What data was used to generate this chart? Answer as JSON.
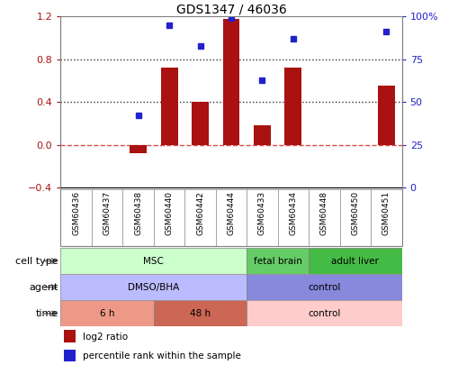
{
  "title": "GDS1347 / 46036",
  "samples": [
    "GSM60436",
    "GSM60437",
    "GSM60438",
    "GSM60440",
    "GSM60442",
    "GSM60444",
    "GSM60433",
    "GSM60434",
    "GSM60448",
    "GSM60450",
    "GSM60451"
  ],
  "log2_ratio": [
    0,
    0,
    -0.08,
    0.72,
    0.4,
    1.18,
    0.18,
    0.72,
    0,
    0,
    0.55
  ],
  "percentile_rank": [
    null,
    null,
    0.42,
    0.95,
    0.83,
    0.99,
    0.63,
    0.87,
    null,
    null,
    0.91
  ],
  "bar_color": "#aa1111",
  "dot_color": "#2222cc",
  "ylim_left": [
    -0.4,
    1.2
  ],
  "ylim_right": [
    0,
    100
  ],
  "yticks_left": [
    -0.4,
    0,
    0.4,
    0.8,
    1.2
  ],
  "yticks_right": [
    0,
    25,
    50,
    75,
    100
  ],
  "hlines": [
    0.8,
    0.4
  ],
  "hline_zero_color": "#cc2222",
  "hline_color": "#333333",
  "cell_type_row": {
    "label": "cell type",
    "groups": [
      {
        "text": "MSC",
        "start": 0,
        "end": 6,
        "color": "#ccffcc"
      },
      {
        "text": "fetal brain",
        "start": 6,
        "end": 8,
        "color": "#66cc66"
      },
      {
        "text": "adult liver",
        "start": 8,
        "end": 11,
        "color": "#44bb44"
      }
    ]
  },
  "agent_row": {
    "label": "agent",
    "groups": [
      {
        "text": "DMSO/BHA",
        "start": 0,
        "end": 6,
        "color": "#bbbbff"
      },
      {
        "text": "control",
        "start": 6,
        "end": 11,
        "color": "#8888dd"
      }
    ]
  },
  "time_row": {
    "label": "time",
    "groups": [
      {
        "text": "6 h",
        "start": 0,
        "end": 3,
        "color": "#ee9988"
      },
      {
        "text": "48 h",
        "start": 3,
        "end": 6,
        "color": "#cc6655"
      },
      {
        "text": "control",
        "start": 6,
        "end": 11,
        "color": "#ffcccc"
      }
    ]
  },
  "legend_items": [
    {
      "color": "#aa1111",
      "label": "log2 ratio"
    },
    {
      "color": "#2222cc",
      "label": "percentile rank within the sample"
    }
  ]
}
